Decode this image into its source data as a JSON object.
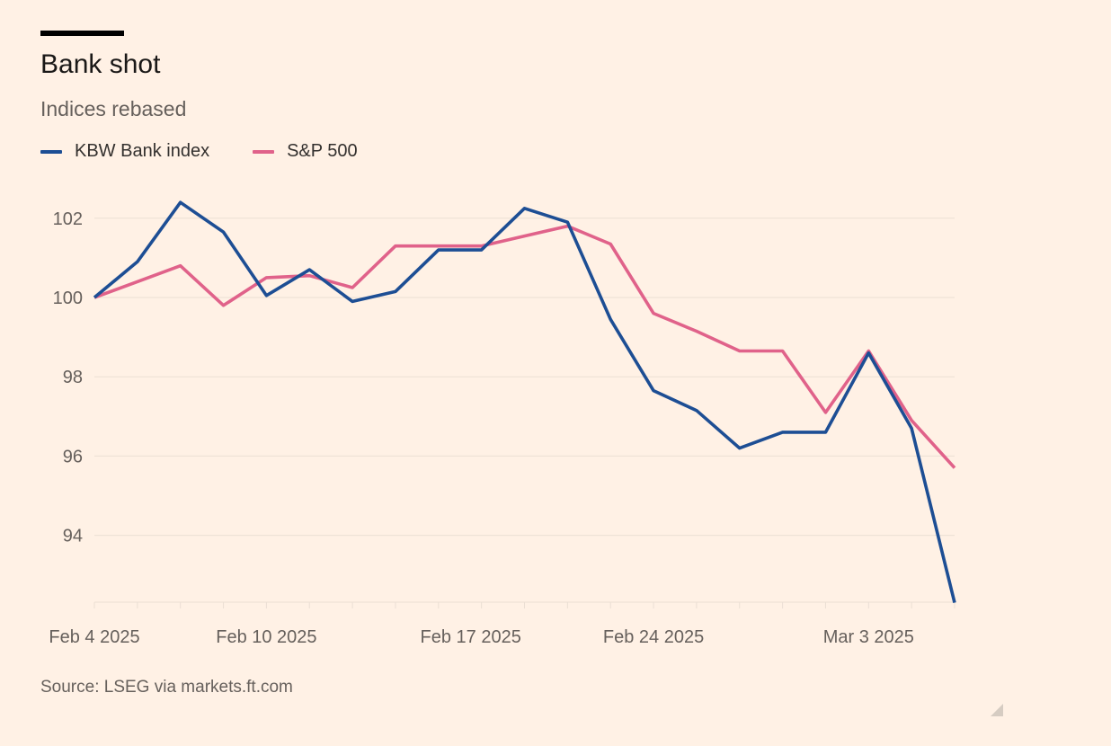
{
  "chart_data": {
    "type": "line",
    "title": "Bank shot",
    "subtitle": "Indices rebased",
    "x": [
      "2025-02-04",
      "2025-02-05",
      "2025-02-06",
      "2025-02-07",
      "2025-02-10",
      "2025-02-11",
      "2025-02-12",
      "2025-02-13",
      "2025-02-14",
      "2025-02-18",
      "2025-02-19",
      "2025-02-20",
      "2025-02-21",
      "2025-02-24",
      "2025-02-25",
      "2025-02-26",
      "2025-02-27",
      "2025-02-28",
      "2025-03-03",
      "2025-03-04",
      "2025-03-05"
    ],
    "x_tick_labels": [
      {
        "x": "2025-02-04",
        "label": "Feb 4 2025"
      },
      {
        "x": "2025-02-10",
        "label": "Feb 10 2025"
      },
      {
        "x": "2025-02-17",
        "label": "Feb 17 2025"
      },
      {
        "x": "2025-02-24",
        "label": "Feb 24 2025"
      },
      {
        "x": "2025-03-03",
        "label": "Mar 3 2025"
      }
    ],
    "series": [
      {
        "name": "KBW Bank index",
        "color": "#1d4e94",
        "values": [
          100.0,
          100.9,
          102.4,
          101.65,
          100.05,
          100.7,
          99.9,
          100.15,
          101.2,
          101.2,
          102.25,
          101.9,
          99.45,
          97.65,
          97.15,
          96.2,
          96.6,
          96.6,
          98.6,
          96.7,
          92.3
        ]
      },
      {
        "name": "S&P 500",
        "color": "#e0628a",
        "values": [
          100.0,
          100.4,
          100.8,
          99.8,
          100.5,
          100.55,
          100.25,
          101.3,
          101.3,
          101.3,
          101.55,
          101.8,
          101.35,
          99.6,
          99.15,
          98.65,
          98.65,
          97.1,
          98.65,
          96.9,
          95.7
        ]
      }
    ],
    "y_ticks": [
      94,
      96,
      98,
      100,
      102
    ],
    "ylim": [
      92.3,
      103.3
    ],
    "grid": true,
    "legend_position": "top-left",
    "source": "Source: LSEG via markets.ft.com"
  }
}
